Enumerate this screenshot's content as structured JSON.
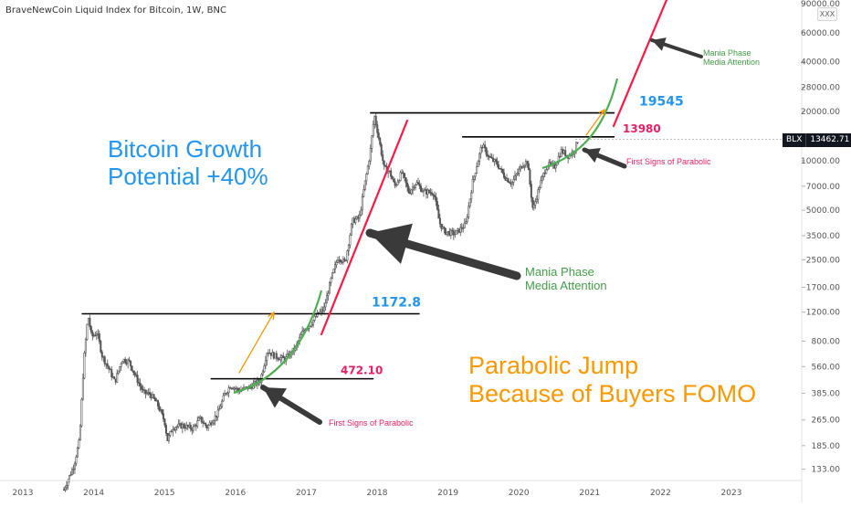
{
  "chart_data": {
    "type": "candlestick",
    "title": "BraveNewCoin Liquid Index for Bitcoin, 1W, BNC",
    "symbol": "BLX",
    "interval": "1W",
    "scale": "log",
    "grid": false,
    "ylim": [
      115,
      95000
    ],
    "xlim": [
      "2013-01",
      "2023-12"
    ],
    "x_ticks": [
      "2013",
      "2014",
      "2015",
      "2016",
      "2017",
      "2018",
      "2019",
      "2020",
      "2021",
      "2022",
      "2023"
    ],
    "y_ticks": [
      {
        "value": 133,
        "label": "133.00"
      },
      {
        "value": 185,
        "label": "185.00"
      },
      {
        "value": 265,
        "label": "265.00"
      },
      {
        "value": 385,
        "label": "385.00"
      },
      {
        "value": 560,
        "label": "560.00"
      },
      {
        "value": 800,
        "label": "800.00"
      },
      {
        "value": 1200,
        "label": "1200.00"
      },
      {
        "value": 1700,
        "label": "1700.00"
      },
      {
        "value": 2500,
        "label": "2500.00"
      },
      {
        "value": 3500,
        "label": "3500.00"
      },
      {
        "value": 5000,
        "label": "5000.00"
      },
      {
        "value": 7000,
        "label": "7000.00"
      },
      {
        "value": 10000,
        "label": "10000.00"
      },
      {
        "value": 20000,
        "label": "20000.00"
      },
      {
        "value": 28000,
        "label": "28000.00"
      },
      {
        "value": 40000,
        "label": "40000.00"
      },
      {
        "value": 60000,
        "label": "60000.00"
      },
      {
        "value": 90000,
        "label": "90000.00"
      }
    ],
    "last_price": {
      "value": 13462.71,
      "label": "13462.71"
    },
    "price_path": [
      [
        "2013.58",
        100
      ],
      [
        "2013.72",
        140
      ],
      [
        "2013.80",
        200
      ],
      [
        "2013.86",
        600
      ],
      [
        "2013.92",
        1150
      ],
      [
        "2013.97",
        850
      ],
      [
        "2014.05",
        900
      ],
      [
        "2014.12",
        650
      ],
      [
        "2014.20",
        560
      ],
      [
        "2014.30",
        450
      ],
      [
        "2014.40",
        620
      ],
      [
        "2014.50",
        600
      ],
      [
        "2014.60",
        480
      ],
      [
        "2014.70",
        390
      ],
      [
        "2014.80",
        380
      ],
      [
        "2014.90",
        330
      ],
      [
        "2015.00",
        260
      ],
      [
        "2015.04",
        200
      ],
      [
        "2015.12",
        240
      ],
      [
        "2015.25",
        245
      ],
      [
        "2015.40",
        235
      ],
      [
        "2015.50",
        270
      ],
      [
        "2015.60",
        240
      ],
      [
        "2015.75",
        290
      ],
      [
        "2015.85",
        380
      ],
      [
        "2015.93",
        430
      ],
      [
        "2016.05",
        400
      ],
      [
        "2016.20",
        420
      ],
      [
        "2016.35",
        460
      ],
      [
        "2016.45",
        700
      ],
      [
        "2016.55",
        650
      ],
      [
        "2016.70",
        620
      ],
      [
        "2016.85",
        730
      ],
      [
        "2016.97",
        950
      ],
      [
        "2017.05",
        1000
      ],
      [
        "2017.15",
        1150
      ],
      [
        "2017.25",
        1250
      ],
      [
        "2017.35",
        1900
      ],
      [
        "2017.45",
        2600
      ],
      [
        "2017.55",
        2400
      ],
      [
        "2017.65",
        4300
      ],
      [
        "2017.75",
        4500
      ],
      [
        "2017.82",
        7000
      ],
      [
        "2017.90",
        11000
      ],
      [
        "2017.96",
        19000
      ],
      [
        "2018.02",
        14000
      ],
      [
        "2018.10",
        9000
      ],
      [
        "2018.18",
        8500
      ],
      [
        "2018.25",
        7000
      ],
      [
        "2018.35",
        8500
      ],
      [
        "2018.45",
        6400
      ],
      [
        "2018.55",
        7400
      ],
      [
        "2018.65",
        6500
      ],
      [
        "2018.80",
        6400
      ],
      [
        "2018.88",
        4200
      ],
      [
        "2018.95",
        3700
      ],
      [
        "2019.10",
        3600
      ],
      [
        "2019.25",
        4100
      ],
      [
        "2019.35",
        7500
      ],
      [
        "2019.48",
        12500
      ],
      [
        "2019.58",
        10500
      ],
      [
        "2019.70",
        9500
      ],
      [
        "2019.80",
        8000
      ],
      [
        "2019.90",
        7300
      ],
      [
        "2020.05",
        9500
      ],
      [
        "2020.12",
        9900
      ],
      [
        "2020.20",
        5000
      ],
      [
        "2020.30",
        7200
      ],
      [
        "2020.40",
        9500
      ],
      [
        "2020.50",
        9200
      ],
      [
        "2020.60",
        11500
      ],
      [
        "2020.70",
        10700
      ],
      [
        "2020.78",
        11500
      ],
      [
        "2020.84",
        13462.71
      ]
    ],
    "horizontal_levels": [
      {
        "value": 472.1,
        "label": "472.10",
        "from": "2015.65",
        "to": "2017.95"
      },
      {
        "value": 1172.8,
        "label": "1172.8",
        "from": "2013.83",
        "to": "2018.60"
      },
      {
        "value": 13980,
        "label": "13980",
        "from": "2019.20",
        "to": "2021.35"
      },
      {
        "value": 19545,
        "label": "19545",
        "from": "2017.90",
        "to": "2021.35"
      }
    ],
    "annotations": [
      {
        "text": "Bitcoin Growth"
      },
      {
        "text": "Potential +40%"
      },
      {
        "text": "Mania Phase"
      },
      {
        "text": "Media Attention"
      },
      {
        "text": "Parabolic Jump"
      },
      {
        "text": "Because of Buyers FOMO"
      },
      {
        "text": "First Signs of Parabolic"
      },
      {
        "text": "First Signs of Parabolic"
      },
      {
        "text": "Mania Phase"
      },
      {
        "text": "Media Attention"
      }
    ]
  },
  "ui": {
    "xxx_label": "XXX",
    "blx_symbol": "BLX",
    "blx_price": "13462.71"
  },
  "colors": {
    "candle": "#555555",
    "level_line": "#000000",
    "label_blue": "#2196f3",
    "label_crimson": "#e91e63",
    "arrow_orange": "#ff9800",
    "curve_green": "#4caf50",
    "trend_red": "#ff1744",
    "note_green": "#43a047",
    "note_orange": "#ff9800",
    "arrow_dark": "#3a3a3a",
    "axis_text": "#555555"
  }
}
